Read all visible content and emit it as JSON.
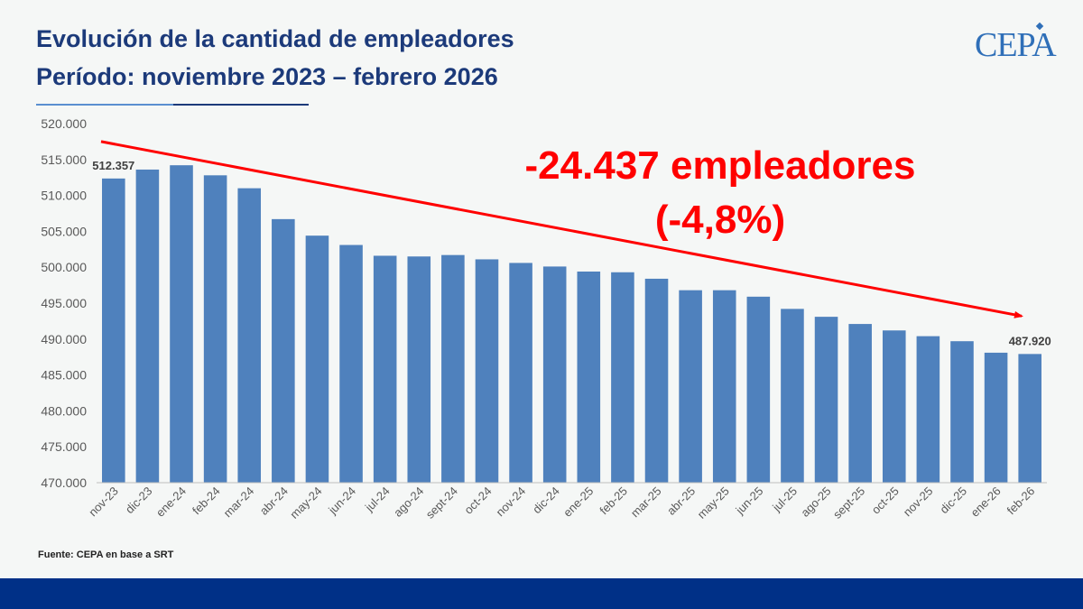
{
  "header": {
    "title": "Evolución de la cantidad de empleadores",
    "subtitle": "Período: noviembre 2023 – febrero 2026",
    "logo_text": "CEPA"
  },
  "source_note": "Fuente: CEPA en base a SRT",
  "colors": {
    "bar": "#4f81bd",
    "title": "#1c3a7a",
    "annotation": "#ff0000",
    "footer": "#003087"
  },
  "chart_data": {
    "type": "bar",
    "title": "",
    "xlabel": "",
    "ylabel": "",
    "ylim": [
      470000,
      520000
    ],
    "yticks": [
      470000,
      475000,
      480000,
      485000,
      490000,
      495000,
      500000,
      505000,
      510000,
      515000,
      520000
    ],
    "ytick_labels": [
      "470.000",
      "475.000",
      "480.000",
      "485.000",
      "490.000",
      "495.000",
      "500.000",
      "505.000",
      "510.000",
      "515.000",
      "520.000"
    ],
    "grid": false,
    "categories": [
      "nov-23",
      "dic-23",
      "ene-24",
      "feb-24",
      "mar-24",
      "abr-24",
      "may-24",
      "jun-24",
      "jul-24",
      "ago-24",
      "sept-24",
      "oct-24",
      "nov-24",
      "dic-24",
      "ene-25",
      "feb-25",
      "mar-25",
      "abr-25",
      "may-25",
      "jun-25",
      "jul-25",
      "ago-25",
      "sept-25",
      "oct-25",
      "nov-25",
      "dic-25",
      "ene-26",
      "feb-26"
    ],
    "values": [
      512357,
      513600,
      514200,
      512800,
      511000,
      506700,
      504400,
      503100,
      501600,
      501500,
      501700,
      501100,
      500600,
      500100,
      499400,
      499300,
      498400,
      496800,
      496800,
      495900,
      494200,
      493100,
      492100,
      491200,
      490400,
      489700,
      488100,
      487920
    ],
    "data_labels": [
      {
        "index": 0,
        "text": "512.357"
      },
      {
        "index": 27,
        "text": "487.920"
      }
    ],
    "annotation": {
      "line1": "-24.437 empleadores",
      "line2": "(-4,8%)",
      "trend_from_value": 517500,
      "trend_to_value": 493200
    }
  }
}
